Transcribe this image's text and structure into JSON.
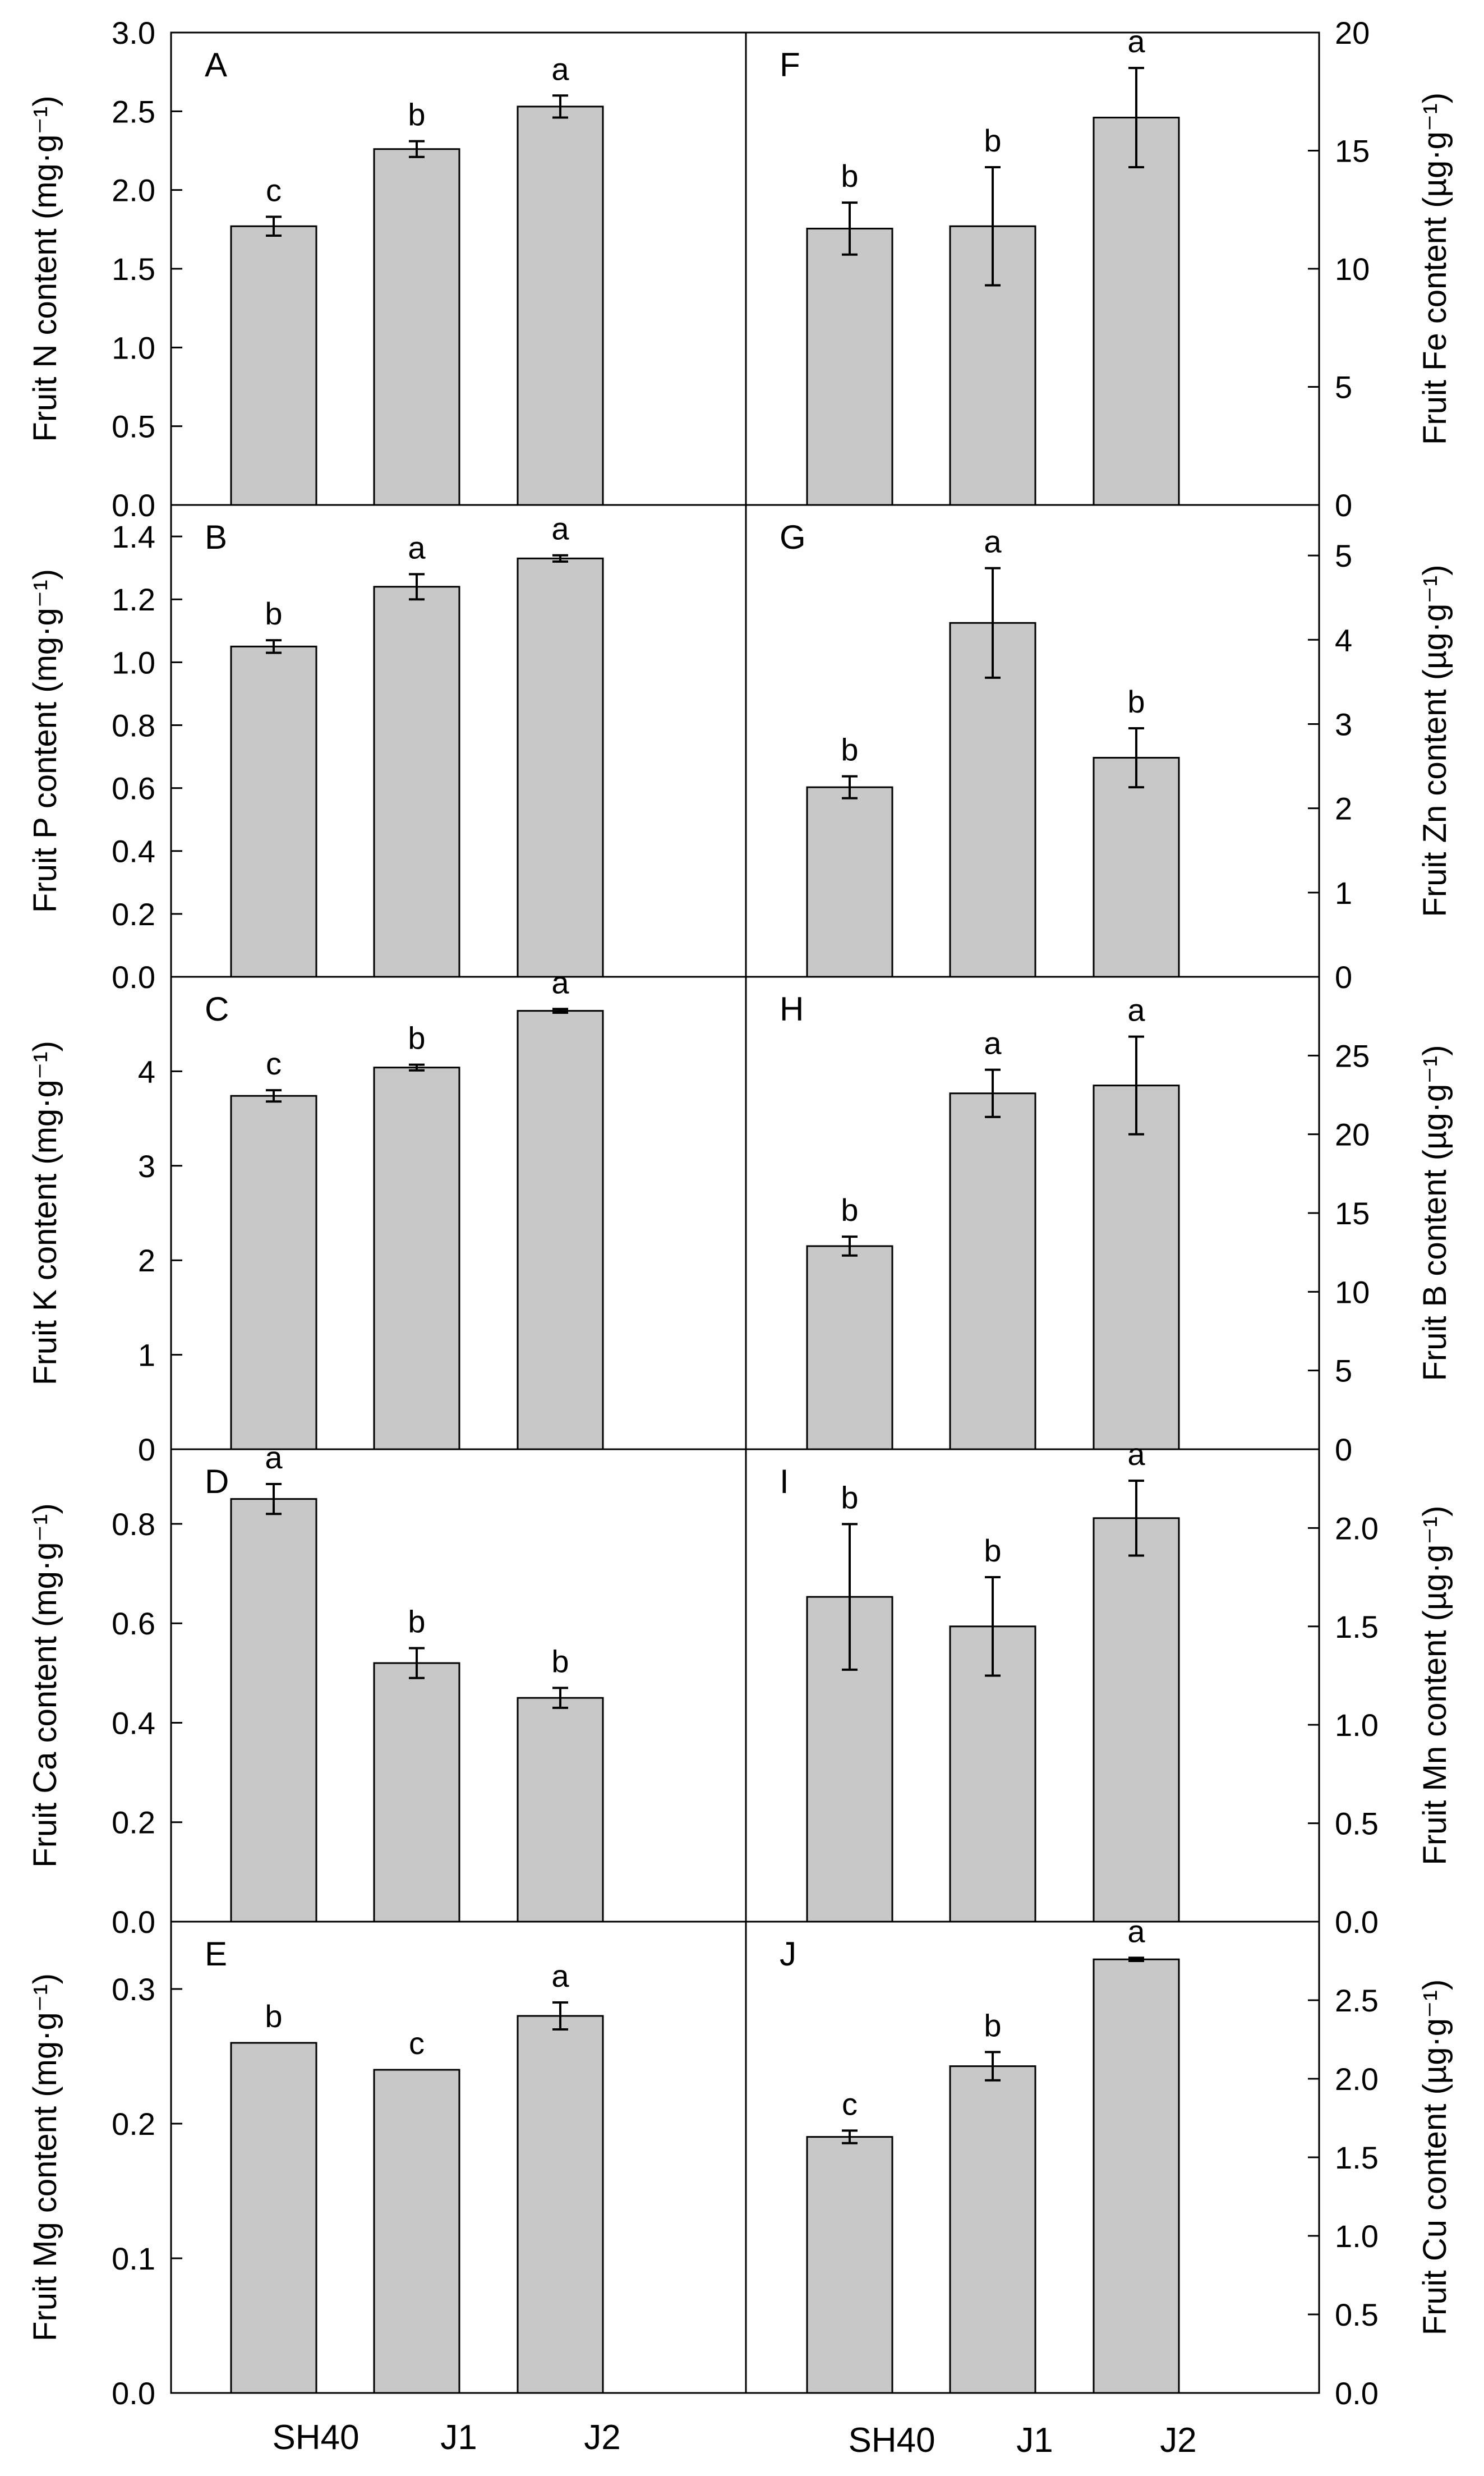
{
  "chart_data": [
    {
      "panel": "A",
      "type": "bar",
      "column": "left",
      "categories": [
        "SH40",
        "J1",
        "J2"
      ],
      "values": [
        1.77,
        2.26,
        2.53
      ],
      "errors": [
        0.06,
        0.05,
        0.07
      ],
      "letters": [
        "c",
        "b",
        "a"
      ],
      "ylabel": "Fruit N content (mg·g⁻¹)",
      "ylim": [
        0,
        3.0
      ],
      "ticks": [
        "0.0",
        "0.5",
        "1.0",
        "1.5",
        "2.0",
        "2.5",
        "3.0"
      ]
    },
    {
      "panel": "B",
      "type": "bar",
      "column": "left",
      "categories": [
        "SH40",
        "J1",
        "J2"
      ],
      "values": [
        1.05,
        1.24,
        1.33
      ],
      "errors": [
        0.02,
        0.04,
        0.01
      ],
      "letters": [
        "b",
        "a",
        "a"
      ],
      "ylabel": "Fruit P content (mg·g⁻¹)",
      "ylim": [
        0,
        1.5
      ],
      "ticks": [
        "0.0",
        "0.2",
        "0.4",
        "0.6",
        "0.8",
        "1.0",
        "1.2",
        "1.4"
      ]
    },
    {
      "panel": "C",
      "type": "bar",
      "column": "left",
      "categories": [
        "SH40",
        "J1",
        "J2"
      ],
      "values": [
        3.74,
        4.04,
        4.64
      ],
      "errors": [
        0.06,
        0.03,
        0.02
      ],
      "letters": [
        "c",
        "b",
        "a"
      ],
      "ylabel": "Fruit K content (mg·g⁻¹)",
      "ylim": [
        0,
        5.0
      ],
      "ticks": [
        "0",
        "1",
        "2",
        "3",
        "4"
      ]
    },
    {
      "panel": "D",
      "type": "bar",
      "column": "left",
      "categories": [
        "SH40",
        "J1",
        "J2"
      ],
      "values": [
        0.85,
        0.52,
        0.45
      ],
      "errors": [
        0.03,
        0.03,
        0.02
      ],
      "letters": [
        "a",
        "b",
        "b"
      ],
      "ylabel": "Fruit Ca content (mg·g⁻¹)",
      "ylim": [
        0,
        0.95
      ],
      "ticks": [
        "0.0",
        "0.2",
        "0.4",
        "0.6",
        "0.8"
      ]
    },
    {
      "panel": "E",
      "type": "bar",
      "column": "left",
      "categories": [
        "SH40",
        "J1",
        "J2"
      ],
      "values": [
        0.26,
        0.24,
        0.28
      ],
      "errors": [
        0,
        0,
        0.01
      ],
      "letters": [
        "b",
        "c",
        "a"
      ],
      "ylabel": "Fruit Mg content (mg·g⁻¹)",
      "ylim": [
        0,
        0.35
      ],
      "ticks": [
        "0.0",
        "0.1",
        "0.2",
        "0.3"
      ]
    },
    {
      "panel": "F",
      "type": "bar",
      "column": "right",
      "categories": [
        "SH40",
        "J1",
        "J2"
      ],
      "values": [
        11.7,
        11.8,
        16.4
      ],
      "errors": [
        1.1,
        2.5,
        2.1
      ],
      "letters": [
        "b",
        "b",
        "a"
      ],
      "ylabel": "Fruit Fe content (µg·g⁻¹)",
      "ylim": [
        0,
        20
      ],
      "ticks": [
        "0",
        "5",
        "10",
        "15",
        "20"
      ]
    },
    {
      "panel": "G",
      "type": "bar",
      "column": "right",
      "categories": [
        "SH40",
        "J1",
        "J2"
      ],
      "values": [
        2.25,
        4.2,
        2.6
      ],
      "errors": [
        0.13,
        0.65,
        0.35
      ],
      "letters": [
        "b",
        "a",
        "b"
      ],
      "ylabel": "Fruit Zn content (µg·g⁻¹)",
      "ylim": [
        0,
        5.6
      ],
      "ticks": [
        "0",
        "1",
        "2",
        "3",
        "4",
        "5"
      ]
    },
    {
      "panel": "H",
      "type": "bar",
      "column": "right",
      "categories": [
        "SH40",
        "J1",
        "J2"
      ],
      "values": [
        12.9,
        22.6,
        23.1
      ],
      "errors": [
        0.6,
        1.5,
        3.1
      ],
      "letters": [
        "b",
        "a",
        "a"
      ],
      "ylabel": "Fruit B content (µg·g⁻¹)",
      "ylim": [
        0,
        30
      ],
      "ticks": [
        "0",
        "5",
        "10",
        "15",
        "20",
        "25"
      ]
    },
    {
      "panel": "I",
      "type": "bar",
      "column": "right",
      "categories": [
        "SH40",
        "J1",
        "J2"
      ],
      "values": [
        1.65,
        1.5,
        2.05
      ],
      "errors": [
        0.37,
        0.25,
        0.19
      ],
      "letters": [
        "b",
        "b",
        "a"
      ],
      "ylabel": "Fruit Mn content (µg·g⁻¹)",
      "ylim": [
        0,
        2.4
      ],
      "ticks": [
        "0.0",
        "0.5",
        "1.0",
        "1.5",
        "2.0"
      ]
    },
    {
      "panel": "J",
      "type": "bar",
      "column": "right",
      "categories": [
        "SH40",
        "J1",
        "J2"
      ],
      "values": [
        1.63,
        2.08,
        2.76
      ],
      "errors": [
        0.04,
        0.09,
        0.01
      ],
      "letters": [
        "c",
        "b",
        "a"
      ],
      "ylabel": "Fruit Cu content (µg·g⁻¹)",
      "ylim": [
        0,
        3.0
      ],
      "ticks": [
        "0.0",
        "0.5",
        "1.0",
        "1.5",
        "2.0",
        "2.5"
      ]
    }
  ],
  "x_axis_labels": {
    "left": [
      "SH40",
      "J1",
      "J2"
    ],
    "right": [
      "SH40",
      "J1",
      "J2"
    ]
  },
  "colors": {
    "bar_fill": "#c8c8c8",
    "bar_stroke": "#000000",
    "axis": "#000000"
  }
}
